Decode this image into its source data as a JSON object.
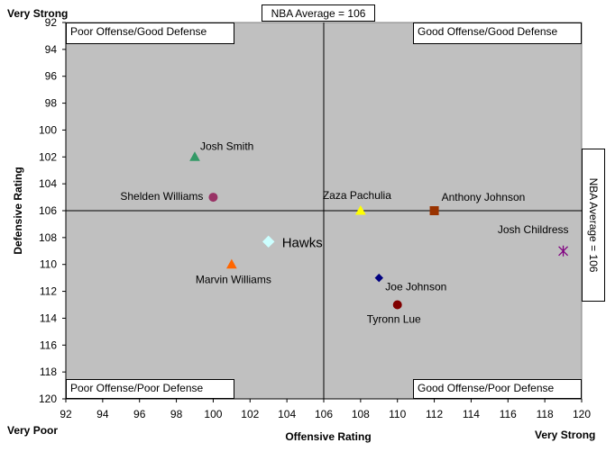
{
  "chart_data": {
    "type": "scatter",
    "xlabel": "Offensive Rating",
    "ylabel": "Defensive Rating",
    "xlim": [
      92,
      120
    ],
    "ylim": [
      92,
      120
    ],
    "y_inverted": true,
    "x_ticks": [
      "92",
      "94",
      "96",
      "98",
      "100",
      "102",
      "104",
      "106",
      "108",
      "110",
      "112",
      "114",
      "116",
      "118",
      "120"
    ],
    "y_ticks": [
      "92",
      "94",
      "96",
      "98",
      "100",
      "102",
      "104",
      "106",
      "108",
      "110",
      "112",
      "114",
      "116",
      "118",
      "120"
    ],
    "reference_lines": {
      "x": 106,
      "y": 106
    },
    "reference_label_top": "NBA Average = 106",
    "reference_label_right": "NBA Average = 106",
    "quadrants": {
      "top_left": "Poor Offense/Good Defense",
      "top_right": "Good Offense/Good Defense",
      "bottom_left": "Poor Offense/Poor Defense",
      "bottom_right": "Good Offense/Poor Defense"
    },
    "corner_labels": {
      "y_top": "Very Strong",
      "x_left": "Very Poor",
      "x_right": "Very Strong"
    },
    "grid": false,
    "plot_background": "#c0c0c0",
    "points": [
      {
        "name": "Josh Smith",
        "x": 99,
        "y": 102,
        "marker": "triangle",
        "color": "#339966"
      },
      {
        "name": "Shelden Williams",
        "x": 100,
        "y": 105,
        "marker": "circle",
        "color": "#993366"
      },
      {
        "name": "Marvin Williams",
        "x": 101,
        "y": 110,
        "marker": "triangle",
        "color": "#ff6600"
      },
      {
        "name": "Hawks",
        "x": 103,
        "y": 108.3,
        "marker": "diamond",
        "color": "#ccffff"
      },
      {
        "name": "Zaza Pachulia",
        "x": 108,
        "y": 106,
        "marker": "triangle",
        "color": "#ffff00"
      },
      {
        "name": "Anthony Johnson",
        "x": 112,
        "y": 106,
        "marker": "square",
        "color": "#993300"
      },
      {
        "name": "Josh Childress",
        "x": 119,
        "y": 109,
        "marker": "star",
        "color": "#800080"
      },
      {
        "name": "Joe Johnson",
        "x": 109,
        "y": 111,
        "marker": "diamond",
        "color": "#000080"
      },
      {
        "name": "Tyronn Lue",
        "x": 110,
        "y": 113,
        "marker": "circle",
        "color": "#800000"
      }
    ]
  }
}
